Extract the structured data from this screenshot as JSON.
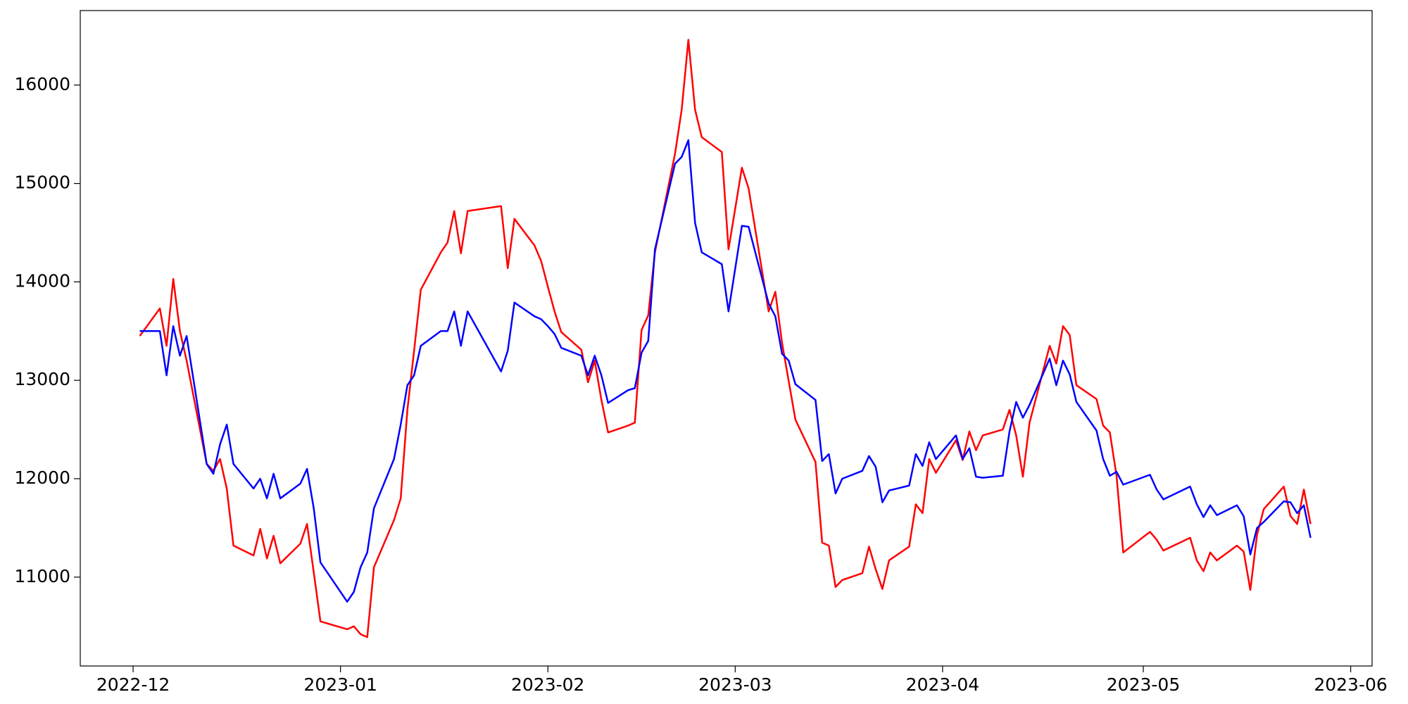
{
  "chart_data": {
    "type": "line",
    "x": [
      19328,
      19331,
      19332,
      19333,
      19334,
      19335,
      19338,
      19339,
      19340,
      19341,
      19342,
      19345,
      19346,
      19347,
      19348,
      19349,
      19352,
      19353,
      19354,
      19355,
      19359,
      19360,
      19361,
      19362,
      19363,
      19366,
      19367,
      19368,
      19369,
      19370,
      19373,
      19374,
      19375,
      19376,
      19377,
      19382,
      19383,
      19384,
      19387,
      19388,
      19389,
      19390,
      19391,
      19394,
      19395,
      19396,
      19397,
      19398,
      19401,
      19402,
      19403,
      19404,
      19405,
      19408,
      19409,
      19410,
      19411,
      19412,
      19415,
      19416,
      19418,
      19419,
      19422,
      19423,
      19424,
      19425,
      19426,
      19429,
      19430,
      19431,
      19432,
      19433,
      19436,
      19437,
      19438,
      19439,
      19440,
      19443,
      19444,
      19445,
      19446,
      19447,
      19450,
      19451,
      19452,
      19453,
      19454,
      19457,
      19458,
      19459,
      19460,
      19461,
      19464,
      19465,
      19466,
      19467,
      19468,
      19471,
      19472,
      19473,
      19474,
      19475,
      19479,
      19480,
      19481,
      19485,
      19486,
      19487,
      19488,
      19489,
      19492,
      19493,
      19494,
      19495,
      19496,
      19499,
      19500,
      19501,
      19502,
      19503
    ],
    "series": [
      {
        "color": "red",
        "values": [
          13450,
          13730,
          13350,
          14030,
          13500,
          13200,
          12150,
          12080,
          12200,
          11900,
          11320,
          11220,
          11490,
          11190,
          11420,
          11140,
          11340,
          11540,
          11050,
          10550,
          10470,
          10500,
          10420,
          10390,
          11100,
          11580,
          11800,
          12700,
          13300,
          13920,
          14300,
          14400,
          14720,
          14290,
          14720,
          14770,
          14140,
          14640,
          14370,
          14210,
          13950,
          13700,
          13490,
          13310,
          12980,
          13200,
          12800,
          12470,
          12540,
          12570,
          13510,
          13660,
          14300,
          15300,
          15750,
          16460,
          15750,
          15470,
          15320,
          14330,
          15160,
          14950,
          13700,
          13900,
          13380,
          12990,
          12600,
          12170,
          11350,
          11320,
          10900,
          10970,
          11040,
          11310,
          11080,
          10880,
          11170,
          11310,
          11740,
          11650,
          12200,
          12060,
          12390,
          12190,
          12480,
          12290,
          12440,
          12500,
          12700,
          12440,
          12020,
          12570,
          13350,
          13170,
          13550,
          13460,
          12950,
          12810,
          12540,
          12470,
          12030,
          11250,
          11460,
          11380,
          11270,
          11400,
          11170,
          11060,
          11250,
          11170,
          11320,
          11260,
          10870,
          11430,
          11690,
          11920,
          11620,
          11540,
          11890,
          11540
        ]
      },
      {
        "color": "blue",
        "values": [
          13500,
          13500,
          13050,
          13550,
          13250,
          13450,
          12150,
          12050,
          12350,
          12550,
          12150,
          11900,
          12000,
          11800,
          12050,
          11800,
          11950,
          12100,
          11700,
          11150,
          10750,
          10850,
          11100,
          11250,
          11700,
          12200,
          12550,
          12950,
          13050,
          13350,
          13500,
          13500,
          13700,
          13350,
          13700,
          13090,
          13300,
          13790,
          13650,
          13620,
          13550,
          13470,
          13330,
          13250,
          13050,
          13250,
          13050,
          12770,
          12900,
          12920,
          13280,
          13400,
          14330,
          15200,
          15270,
          15440,
          14600,
          14300,
          14180,
          13700,
          14570,
          14560,
          13780,
          13650,
          13270,
          13200,
          12960,
          12800,
          12180,
          12250,
          11850,
          12000,
          12080,
          12230,
          12120,
          11760,
          11880,
          11930,
          12250,
          12130,
          12370,
          12200,
          12440,
          12200,
          12310,
          12020,
          12010,
          12030,
          12480,
          12780,
          12620,
          12750,
          13220,
          12950,
          13200,
          13060,
          12780,
          12490,
          12200,
          12030,
          12070,
          11940,
          12040,
          11890,
          11790,
          11920,
          11740,
          11610,
          11730,
          11630,
          11730,
          11620,
          11230,
          11500,
          11560,
          11770,
          11760,
          11650,
          11730,
          11400
        ]
      }
    ],
    "xlim": [
      19319.1,
      19512.2
    ],
    "xticks": [
      {
        "value": 19327,
        "label": "2022-12"
      },
      {
        "value": 19358,
        "label": "2023-01"
      },
      {
        "value": 19389,
        "label": "2023-02"
      },
      {
        "value": 19417,
        "label": "2023-03"
      },
      {
        "value": 19448,
        "label": "2023-04"
      },
      {
        "value": 19478,
        "label": "2023-05"
      },
      {
        "value": 19509,
        "label": "2023-06"
      }
    ],
    "ylim": [
      10097,
      16757
    ],
    "yticks": [
      11000,
      12000,
      13000,
      14000,
      15000,
      16000
    ],
    "grid": false
  }
}
